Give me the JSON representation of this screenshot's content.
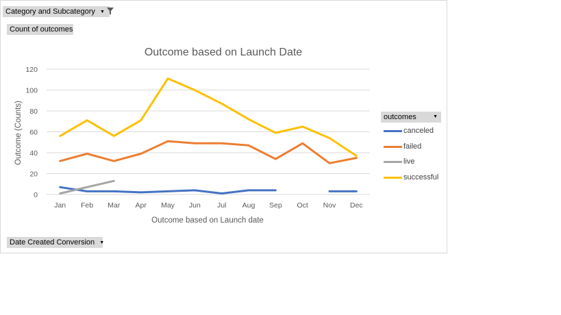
{
  "pivot": {
    "category_field": "Category and Subcategory",
    "values_field": "Count of outcomes",
    "axis_field": "Date Created Conversion",
    "legend_field": "outcomes"
  },
  "icons": {
    "dropdown": "dropdown-arrow-icon",
    "filter": "funnel-filter-icon"
  },
  "colors": {
    "canceled": "#4472c4",
    "failed": "#ed7d31",
    "live": "#a5a5a5",
    "successful": "#ffc000",
    "gridline": "#d9d9d9",
    "text": "#595959"
  },
  "chart_data": {
    "type": "line",
    "title": "Outcome based on Launch Date",
    "xlabel": "Outcome based on Launch date",
    "ylabel": "Outcome (Counts)",
    "ylim": [
      0,
      120
    ],
    "yticks": [
      0,
      20,
      40,
      60,
      80,
      100,
      120
    ],
    "grid": true,
    "legend_position": "right",
    "categories": [
      "Jan",
      "Feb",
      "Mar",
      "Apr",
      "May",
      "Jun",
      "Jul",
      "Aug",
      "Sep",
      "Oct",
      "Nov",
      "Dec"
    ],
    "series": [
      {
        "name": "canceled",
        "values": [
          7,
          3,
          3,
          2,
          3,
          4,
          1,
          4,
          4,
          null,
          3,
          3
        ]
      },
      {
        "name": "failed",
        "values": [
          32,
          39,
          32,
          39,
          51,
          49,
          49,
          47,
          34,
          49,
          30,
          35
        ]
      },
      {
        "name": "live",
        "values": [
          1,
          7,
          13,
          null,
          null,
          null,
          null,
          null,
          null,
          null,
          null,
          null
        ]
      },
      {
        "name": "successful",
        "values": [
          56,
          71,
          56,
          71,
          111,
          100,
          87,
          72,
          59,
          65,
          54,
          37
        ]
      }
    ]
  }
}
